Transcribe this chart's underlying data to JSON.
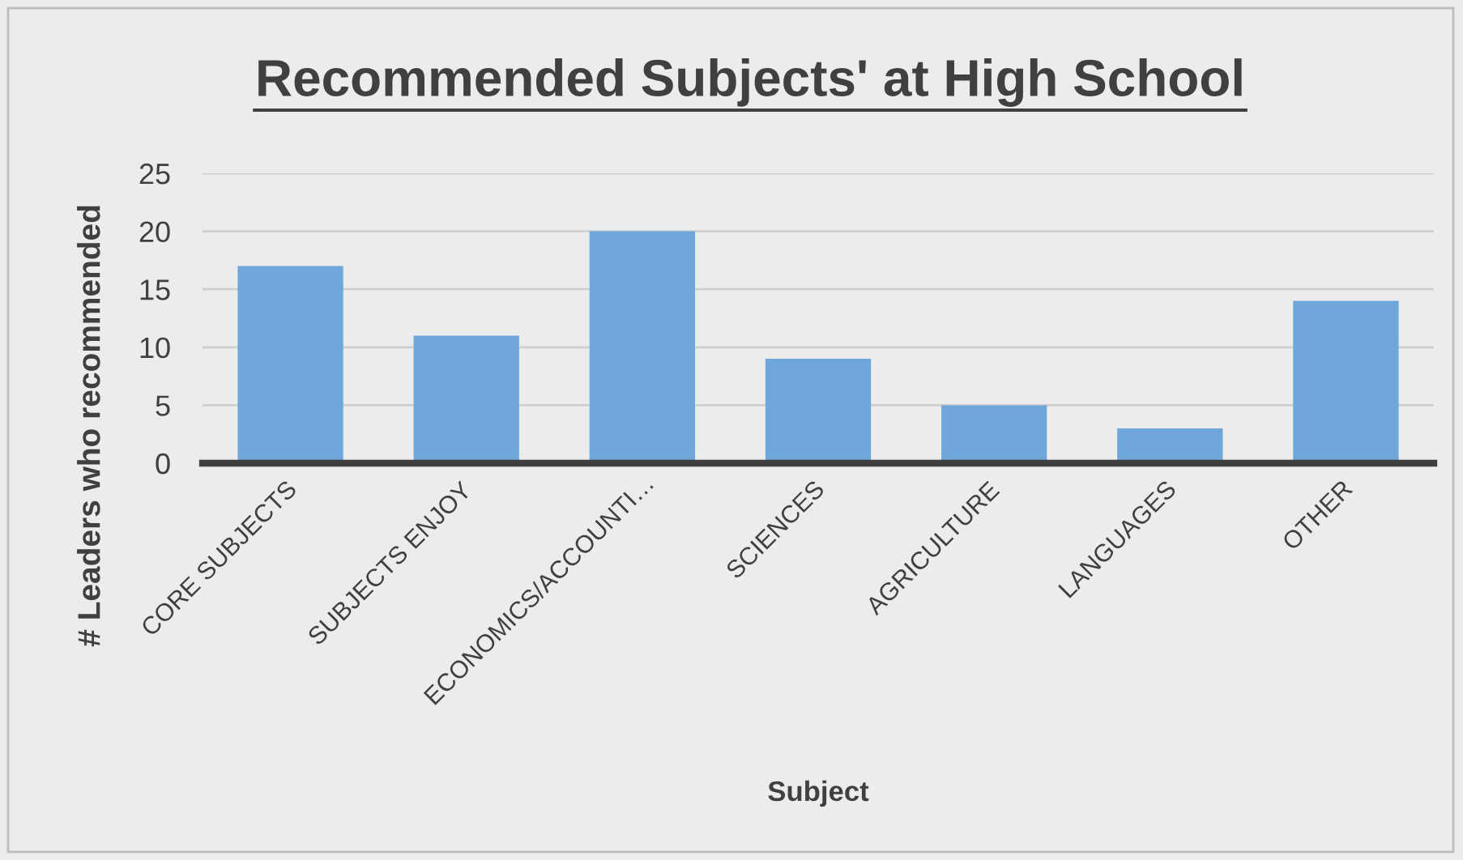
{
  "chart_data": {
    "type": "bar",
    "title": "Recommended Subjects' at High School",
    "xlabel": "Subject",
    "ylabel": "# Leaders who recommended",
    "categories": [
      "CORE SUBJECTS",
      "SUBJECTS ENJOY",
      "ECONOMICS/ACCOUNTI…",
      "SCIENCES",
      "AGRICULTURE",
      "LANGUAGES",
      "OTHER"
    ],
    "values": [
      17,
      11,
      20,
      9,
      5,
      3,
      14
    ],
    "color": "#6fa7db",
    "ylim": [
      0,
      25
    ],
    "yticks": [
      0,
      5,
      10,
      15,
      20,
      25
    ],
    "grid": "y"
  }
}
